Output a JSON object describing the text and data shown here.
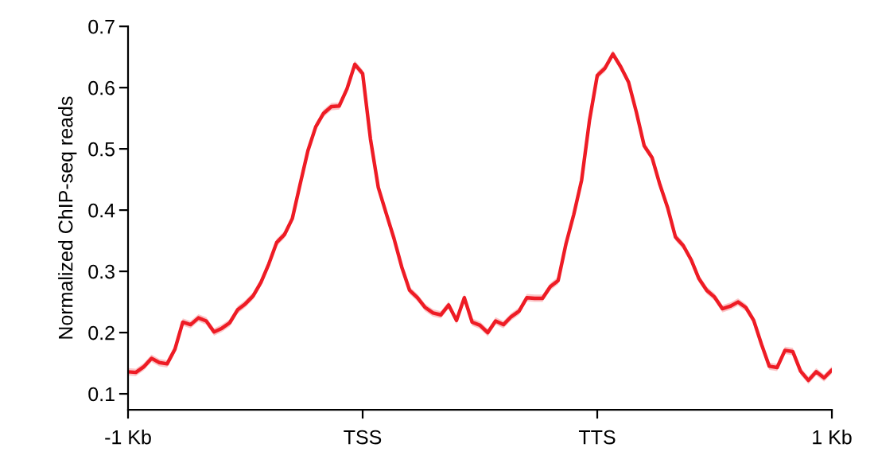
{
  "chart_data": {
    "type": "line",
    "ylabel": "Normalized ChIP-seq reads",
    "categories": [
      "-1 Kb",
      null,
      null,
      null,
      null,
      null,
      null,
      null,
      null,
      null,
      null,
      null,
      null,
      null,
      null,
      null,
      null,
      null,
      null,
      null,
      null,
      null,
      null,
      null,
      null,
      null,
      null,
      null,
      null,
      null,
      "TSS",
      null,
      null,
      null,
      null,
      null,
      null,
      null,
      null,
      null,
      null,
      null,
      null,
      null,
      null,
      null,
      null,
      null,
      null,
      null,
      null,
      null,
      null,
      null,
      null,
      null,
      null,
      null,
      null,
      null,
      "TTS",
      null,
      null,
      null,
      null,
      null,
      null,
      null,
      null,
      null,
      null,
      null,
      null,
      null,
      null,
      null,
      null,
      null,
      null,
      null,
      null,
      null,
      null,
      null,
      null,
      null,
      null,
      null,
      null,
      null,
      "1 Kb"
    ],
    "ylim": [
      0.074,
      0.7
    ],
    "yticks": [
      0.1,
      0.2,
      0.3,
      0.4,
      0.5,
      0.6,
      0.7
    ],
    "series": [
      {
        "color": "#ee1c25",
        "values": [
          0.136,
          0.135,
          0.144,
          0.158,
          0.151,
          0.149,
          0.173,
          0.217,
          0.213,
          0.224,
          0.219,
          0.201,
          0.207,
          0.216,
          0.237,
          0.247,
          0.26,
          0.282,
          0.312,
          0.347,
          0.36,
          0.386,
          0.442,
          0.497,
          0.536,
          0.558,
          0.569,
          0.57,
          0.598,
          0.638,
          0.623,
          0.516,
          0.437,
          0.395,
          0.354,
          0.307,
          0.269,
          0.257,
          0.241,
          0.232,
          0.229,
          0.245,
          0.22,
          0.257,
          0.217,
          0.212,
          0.2,
          0.219,
          0.213,
          0.226,
          0.235,
          0.257,
          0.256,
          0.256,
          0.275,
          0.285,
          0.345,
          0.393,
          0.449,
          0.546,
          0.62,
          0.632,
          0.655,
          0.634,
          0.609,
          0.56,
          0.505,
          0.486,
          0.442,
          0.404,
          0.356,
          0.342,
          0.319,
          0.288,
          0.269,
          0.258,
          0.239,
          0.243,
          0.25,
          0.241,
          0.22,
          0.181,
          0.145,
          0.143,
          0.171,
          0.169,
          0.137,
          0.122,
          0.136,
          0.126,
          0.139
        ],
        "lower": [
          0.13,
          0.129,
          0.138,
          0.152,
          0.145,
          0.143,
          0.167,
          0.211,
          0.207,
          0.218,
          0.213,
          0.195,
          0.201,
          0.21,
          0.231,
          0.241,
          0.254,
          0.276,
          0.306,
          0.341,
          0.354,
          0.38,
          0.436,
          0.491,
          0.53,
          0.552,
          0.563,
          0.564,
          0.592,
          0.632,
          0.617,
          0.51,
          0.431,
          0.389,
          0.348,
          0.301,
          0.263,
          0.251,
          0.235,
          0.226,
          0.223,
          0.239,
          0.214,
          0.251,
          0.211,
          0.206,
          0.194,
          0.213,
          0.207,
          0.22,
          0.229,
          0.251,
          0.25,
          0.25,
          0.269,
          0.279,
          0.339,
          0.387,
          0.443,
          0.54,
          0.614,
          0.626,
          0.649,
          0.628,
          0.603,
          0.554,
          0.499,
          0.48,
          0.436,
          0.398,
          0.35,
          0.336,
          0.313,
          0.282,
          0.263,
          0.252,
          0.233,
          0.237,
          0.244,
          0.235,
          0.214,
          0.175,
          0.139,
          0.137,
          0.165,
          0.163,
          0.131,
          0.116,
          0.13,
          0.12,
          0.133
        ],
        "upper": [
          0.142,
          0.141,
          0.15,
          0.164,
          0.157,
          0.155,
          0.179,
          0.223,
          0.219,
          0.23,
          0.225,
          0.207,
          0.213,
          0.222,
          0.243,
          0.253,
          0.266,
          0.288,
          0.318,
          0.353,
          0.366,
          0.392,
          0.448,
          0.503,
          0.542,
          0.564,
          0.575,
          0.576,
          0.604,
          0.644,
          0.629,
          0.522,
          0.443,
          0.401,
          0.36,
          0.313,
          0.275,
          0.263,
          0.247,
          0.238,
          0.235,
          0.251,
          0.226,
          0.263,
          0.223,
          0.218,
          0.206,
          0.225,
          0.219,
          0.232,
          0.241,
          0.263,
          0.262,
          0.262,
          0.281,
          0.291,
          0.351,
          0.399,
          0.455,
          0.552,
          0.626,
          0.638,
          0.661,
          0.64,
          0.615,
          0.566,
          0.511,
          0.492,
          0.448,
          0.41,
          0.362,
          0.348,
          0.325,
          0.294,
          0.275,
          0.264,
          0.245,
          0.249,
          0.256,
          0.247,
          0.226,
          0.187,
          0.151,
          0.149,
          0.177,
          0.175,
          0.143,
          0.128,
          0.142,
          0.132,
          0.145
        ]
      }
    ]
  }
}
